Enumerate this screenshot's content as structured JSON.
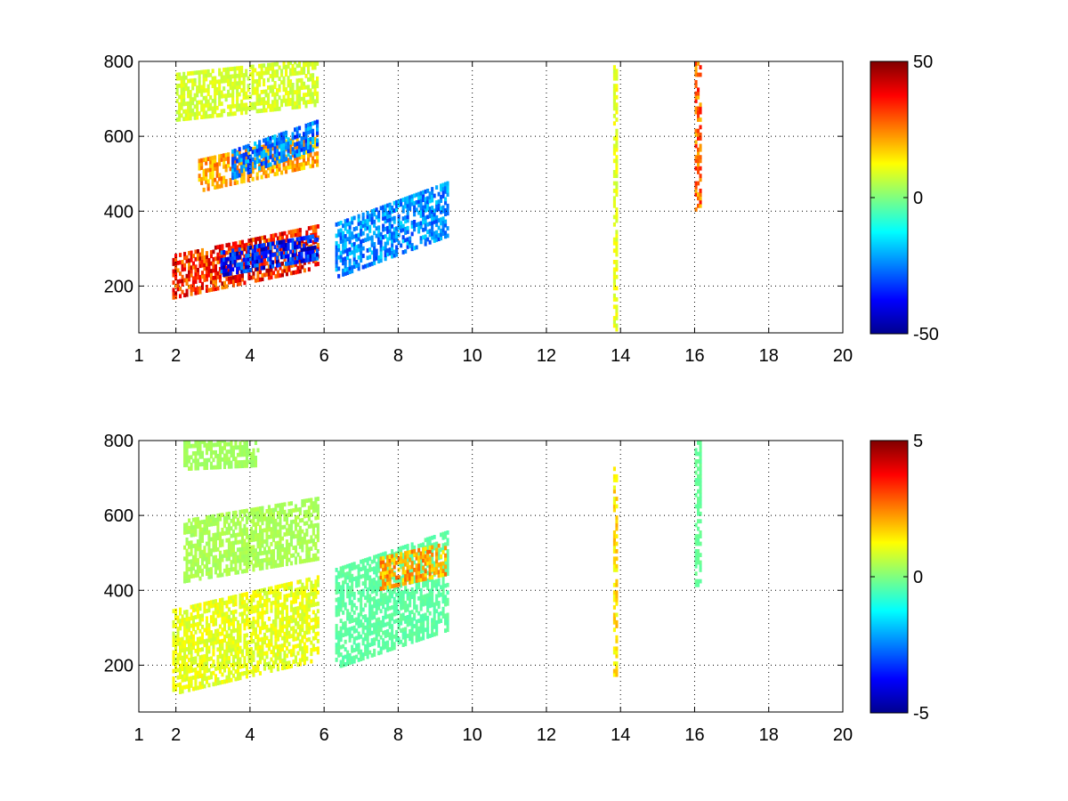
{
  "figure": {
    "background": "#ffffff"
  },
  "colormap": {
    "name": "jet",
    "stops": [
      "#00008f",
      "#0000ff",
      "#00ffff",
      "#ffff00",
      "#ff0000",
      "#800000"
    ]
  },
  "chart_data": [
    {
      "type": "heatmap",
      "title": "",
      "xlabel": "",
      "ylabel": "",
      "xlim": [
        1,
        20
      ],
      "ylim": [
        75,
        800
      ],
      "xticks": [
        1,
        2,
        4,
        6,
        8,
        10,
        12,
        14,
        16,
        18,
        20
      ],
      "xtick_labels": [
        "1",
        "2",
        "4",
        "6",
        "8",
        "10",
        "12",
        "14",
        "16",
        "18",
        "20"
      ],
      "yticks": [
        200,
        400,
        600,
        800
      ],
      "ytick_labels": [
        "200",
        "400",
        "600",
        "800"
      ],
      "grid": true,
      "colorbar": {
        "min": -50,
        "max": 50,
        "ticks": [
          -50,
          0,
          50
        ],
        "tick_labels": [
          "-50",
          "0",
          "50"
        ]
      },
      "features": [
        {
          "desc": "lower ridge (positive)",
          "x": [
            1.9,
            5.8
          ],
          "y_center": [
            220,
            300
          ],
          "y_width": 55,
          "value": 40
        },
        {
          "desc": "lower ridge (negative core)",
          "x": [
            3.2,
            5.8
          ],
          "y_center": [
            255,
            300
          ],
          "y_width": 30,
          "value": -42
        },
        {
          "desc": "upper ridge (positive)",
          "x": [
            2.6,
            5.8
          ],
          "y_center": [
            490,
            560
          ],
          "y_width": 40,
          "value": 25
        },
        {
          "desc": "upper ridge (negative)",
          "x": [
            3.5,
            5.8
          ],
          "y_center": [
            520,
            600
          ],
          "y_width": 35,
          "value": -30
        },
        {
          "desc": "mid band arc",
          "x": [
            6.3,
            9.3
          ],
          "y_center": [
            290,
            400
          ],
          "y_width": 70,
          "value": -28
        },
        {
          "desc": "high band",
          "x": [
            2.0,
            5.8
          ],
          "y_center": [
            700,
            740
          ],
          "y_width": 60,
          "value": 10
        },
        {
          "desc": "vertical line 13.85",
          "x": [
            13.8,
            13.9
          ],
          "y_range": [
            80,
            800
          ],
          "value": 12
        },
        {
          "desc": "vertical line 16.1",
          "x": [
            16.0,
            16.15
          ],
          "y_range": [
            400,
            800
          ],
          "value": 32
        }
      ]
    },
    {
      "type": "heatmap",
      "title": "",
      "xlabel": "",
      "ylabel": "",
      "xlim": [
        1,
        20
      ],
      "ylim": [
        75,
        800
      ],
      "xticks": [
        1,
        2,
        4,
        6,
        8,
        10,
        12,
        14,
        16,
        18,
        20
      ],
      "xtick_labels": [
        "1",
        "2",
        "4",
        "6",
        "8",
        "10",
        "12",
        "14",
        "16",
        "18",
        "20"
      ],
      "yticks": [
        200,
        400,
        600,
        800
      ],
      "ytick_labels": [
        "200",
        "400",
        "600",
        "800"
      ],
      "grid": true,
      "colorbar": {
        "min": -5,
        "max": 5,
        "ticks": [
          -5,
          0,
          5
        ],
        "tick_labels": [
          "-5",
          "0",
          "5"
        ]
      },
      "features": [
        {
          "desc": "lower band",
          "x": [
            1.9,
            5.8
          ],
          "y_center": [
            230,
            320
          ],
          "y_width": 110,
          "value": 1.2
        },
        {
          "desc": "upper band",
          "x": [
            2.2,
            5.8
          ],
          "y_center": [
            500,
            560
          ],
          "y_width": 80,
          "value": 0.5
        },
        {
          "desc": "top band",
          "x": [
            2.2,
            4.2
          ],
          "y_center": [
            760,
            770
          ],
          "y_width": 40,
          "value": 0.4
        },
        {
          "desc": "mid band",
          "x": [
            6.3,
            9.3
          ],
          "y_center": [
            320,
            420
          ],
          "y_width": 130,
          "value": -0.4
        },
        {
          "desc": "mid band warm",
          "x": [
            7.5,
            9.3
          ],
          "y_center": [
            440,
            480
          ],
          "y_width": 40,
          "value": 2.5
        },
        {
          "desc": "vertical line 13.85",
          "x": [
            13.8,
            13.9
          ],
          "y_range": [
            170,
            720
          ],
          "value": 1.8
        },
        {
          "desc": "vertical line 16.1",
          "x": [
            16.0,
            16.15
          ],
          "y_range": [
            410,
            800
          ],
          "value": -0.3
        }
      ]
    }
  ]
}
